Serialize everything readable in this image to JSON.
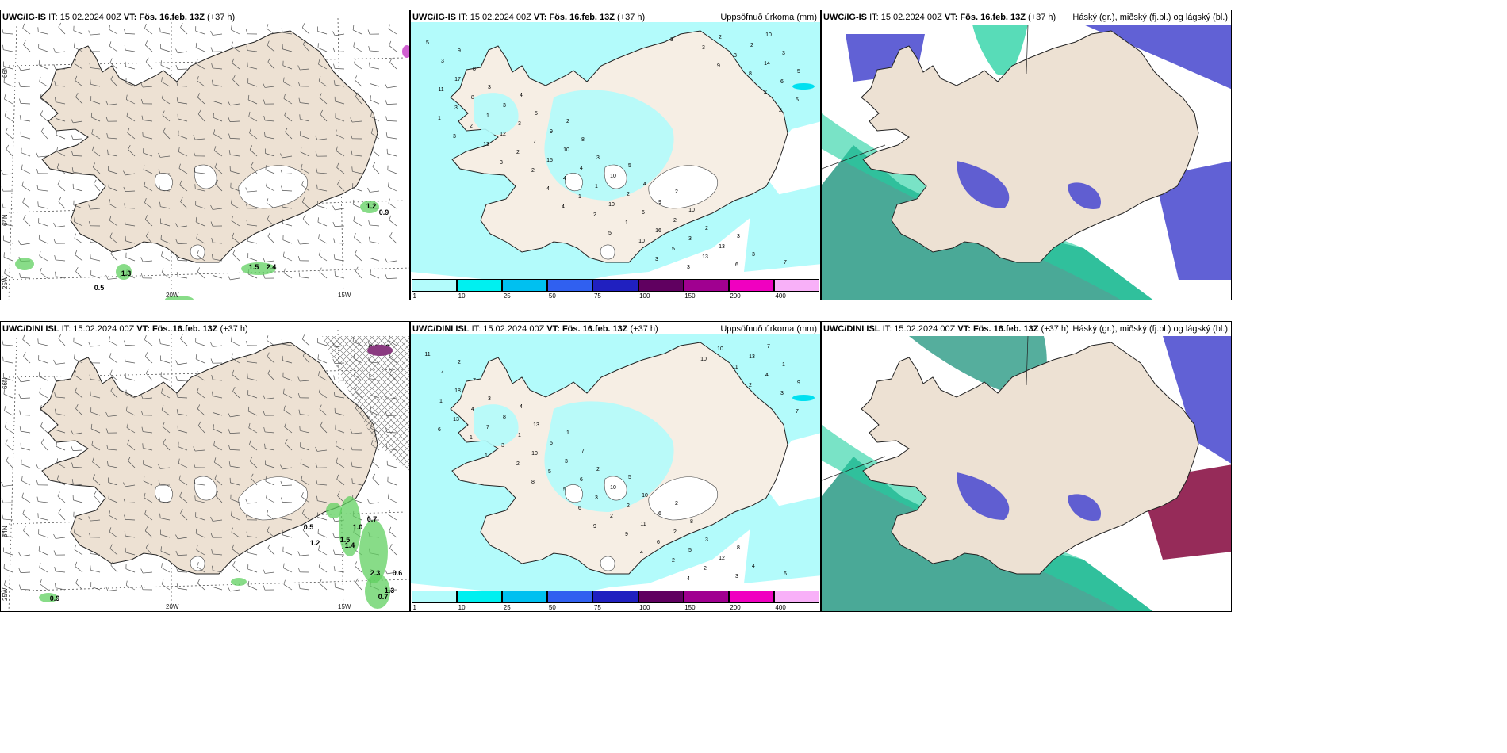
{
  "panels": [
    {
      "id": "p1",
      "header_model": "UWC/IG-IS",
      "header_it_label": "IT:",
      "header_it": "15.02.2024 00Z",
      "header_vt_label": "VT:",
      "header_vt": "Fös. 16.feb. 13Z",
      "header_lead": "(+37 h)",
      "right_title": ""
    },
    {
      "id": "p2",
      "header_model": "UWC/IG-IS",
      "header_it_label": "IT:",
      "header_it": "15.02.2024 00Z",
      "header_vt_label": "VT:",
      "header_vt": "Fös. 16.feb. 13Z",
      "header_lead": "(+37 h)",
      "right_title": "Uppsöfnuð úrkoma (mm)"
    },
    {
      "id": "p3",
      "header_model": "UWC/IG-IS",
      "header_it_label": "IT:",
      "header_it": "15.02.2024 00Z",
      "header_vt_label": "VT:",
      "header_vt": "Fös. 16.feb. 13Z",
      "header_lead": "(+37 h)",
      "right_title": "Háský (gr.), miðský (fj.bl.) og lágský (bl.)"
    },
    {
      "id": "p4",
      "header_model": "UWC/DINI ISL",
      "header_it_label": "IT:",
      "header_it": "15.02.2024 00Z",
      "header_vt_label": "VT:",
      "header_vt": "Fös. 16.feb. 13Z",
      "header_lead": "(+37 h)",
      "right_title": ""
    },
    {
      "id": "p5",
      "header_model": "UWC/DINI ISL",
      "header_it_label": "IT:",
      "header_it": "15.02.2024 00Z",
      "header_vt_label": "VT:",
      "header_vt": "Fös. 16.feb. 13Z",
      "header_lead": "(+37 h)",
      "right_title": "Uppsöfnuð úrkoma (mm)"
    },
    {
      "id": "p6",
      "header_model": "UWC/DINI ISL",
      "header_it_label": "IT:",
      "header_it": "15.02.2024 00Z",
      "header_vt_label": "VT:",
      "header_vt": "Fös. 16.feb. 13Z",
      "header_lead": "(+37 h)",
      "right_title": "Háský (gr.), miðský (fj.bl.) og lágský (bl.)"
    }
  ],
  "axis_labels": {
    "lon_20w": "20W",
    "lon_15w": "15W",
    "lat_66n": "66N",
    "lat_64n": "64N",
    "lat_25w": "25W",
    "lat_6n": "6N"
  },
  "colorbar": {
    "ticks": [
      "1",
      "10",
      "25",
      "50",
      "75",
      "100",
      "150",
      "200",
      "400"
    ],
    "colors": [
      "#b3fbfb",
      "#00f0f0",
      "#00c0f0",
      "#3060f0",
      "#2020c0",
      "#600060",
      "#a00090",
      "#f000c0",
      "#f8b0f8"
    ]
  },
  "colors": {
    "land": "#ede1d3",
    "precip_light": "#b3fbfb",
    "snow_white": "#ffffff",
    "low_cloud": "#5050d0",
    "mid_cloud": "#2a9a85",
    "high_cloud": "#20d0a0",
    "red_cloud": "#902050",
    "wind_precip_green": "#60d060"
  },
  "wind_precip_labels": {
    "p1": [
      "1.2",
      "0.9",
      "1.3",
      "0.5",
      "1.5",
      "2.4"
    ],
    "p4": [
      "0.2",
      "0.2",
      "0.5",
      "1.2",
      "0.7",
      "1.0",
      "1.5",
      "1.4",
      "2.3",
      "0.6",
      "0.7",
      "1.3",
      "0.9"
    ]
  },
  "precip_numbers": {
    "p2": [
      "9",
      "2",
      "2",
      "7",
      "4",
      "5",
      "3",
      "8",
      "8",
      "10",
      "5",
      "5",
      "4",
      "3",
      "3",
      "3",
      "2",
      "3",
      "9",
      "9",
      "10",
      "3",
      "10",
      "13",
      "17",
      "10",
      "2",
      "3",
      "3",
      "2",
      "6",
      "8",
      "4",
      "3",
      "5",
      "7",
      "6",
      "2",
      "1",
      "1",
      "13",
      "11",
      "15",
      "16",
      "14",
      "12",
      "10",
      "2",
      "3",
      "4",
      "5",
      "6",
      "2",
      "1",
      "3",
      "2",
      "1",
      "3",
      "5",
      "2",
      "10",
      "8",
      "13",
      "2",
      "3",
      "1",
      "4",
      "3",
      "2",
      "3",
      "5",
      "9",
      "3",
      "4",
      "3",
      "2"
    ],
    "p5": [
      "2",
      "1",
      "2",
      "6",
      "4",
      "5",
      "8",
      "7",
      "7",
      "8",
      "11",
      "13",
      "10",
      "4",
      "3",
      "2",
      "3",
      "4",
      "5",
      "6",
      "7",
      "8",
      "10",
      "12",
      "18",
      "3",
      "2",
      "1",
      "1",
      "2",
      "3",
      "4",
      "6",
      "5",
      "9",
      "10",
      "11",
      "13",
      "7",
      "3",
      "2",
      "1",
      "5",
      "6",
      "4",
      "3",
      "2",
      "10",
      "13",
      "5",
      "2",
      "3",
      "2",
      "9",
      "11",
      "1",
      "6",
      "4",
      "7",
      "8",
      "4",
      "2",
      "1",
      "9",
      "10",
      "6"
    ]
  }
}
